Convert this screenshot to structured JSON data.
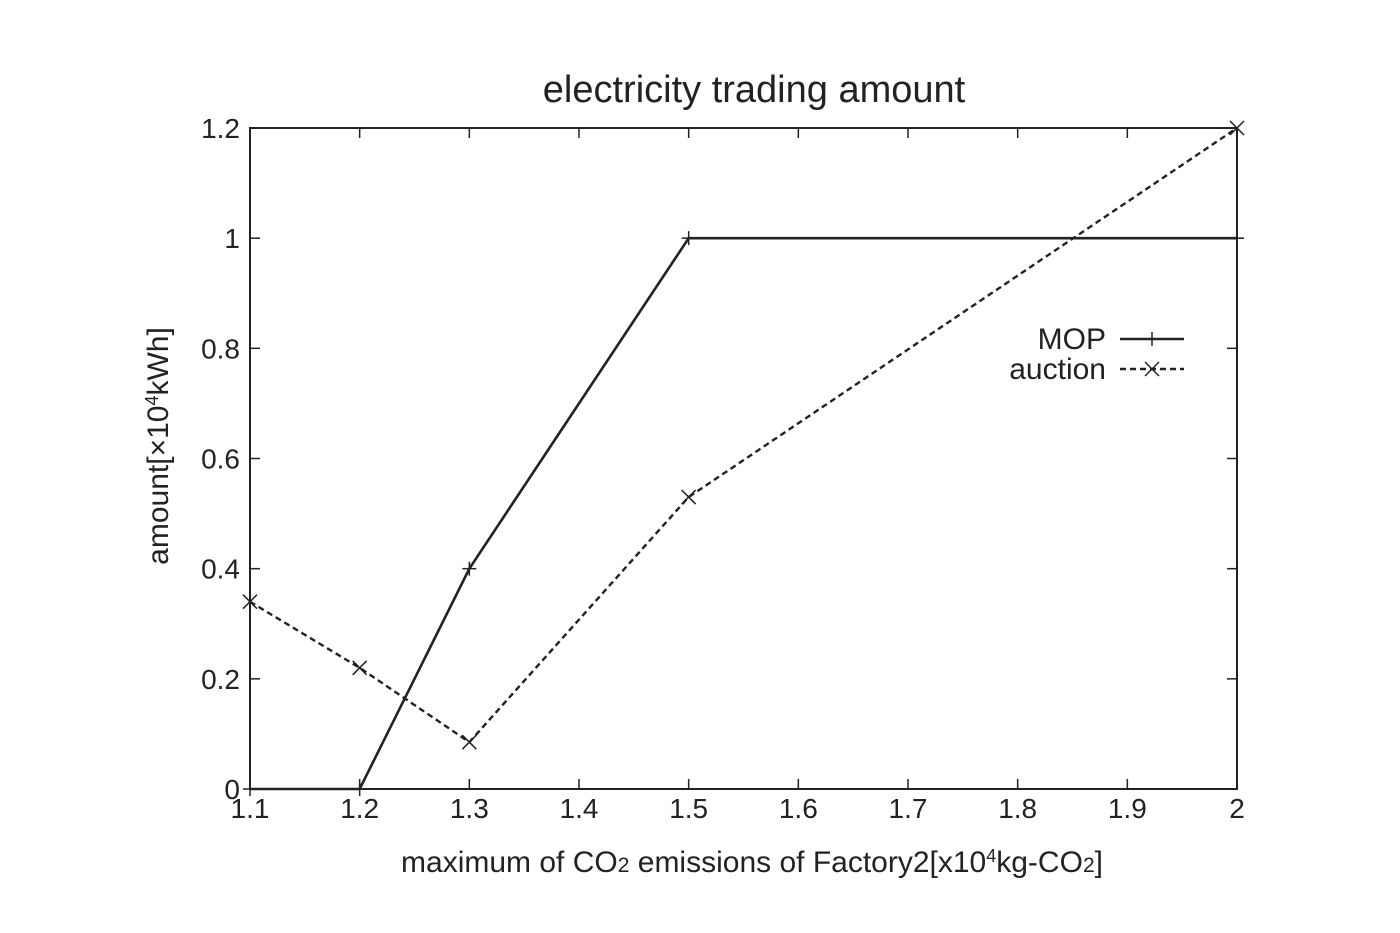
{
  "chart_data": {
    "type": "line",
    "title": "electricity trading amount",
    "xlabel": "maximum of CO₂ emissions of Factory2[x10⁴kg-CO₂]",
    "ylabel": "amount[×10⁴kWh]",
    "xlim": [
      1.1,
      2.0
    ],
    "ylim": [
      0,
      1.2
    ],
    "xticks": [
      "1.1",
      "1.2",
      "1.3",
      "1.4",
      "1.5",
      "1.6",
      "1.7",
      "1.8",
      "1.9",
      "2"
    ],
    "yticks": [
      "0",
      "0.2",
      "0.4",
      "0.6",
      "0.8",
      "1",
      "1.2"
    ],
    "grid": false,
    "legend": "upper-right, inside plot area",
    "series": [
      {
        "name": "MOP",
        "style": "solid",
        "marker": "plus",
        "color": "#222222",
        "x": [
          1.1,
          1.2,
          1.3,
          1.5,
          2.0
        ],
        "y": [
          0.0,
          0.0,
          0.4,
          1.0,
          1.0
        ]
      },
      {
        "name": "auction",
        "style": "dashed",
        "marker": "cross",
        "color": "#222222",
        "x": [
          1.1,
          1.2,
          1.3,
          1.5,
          2.0
        ],
        "y": [
          0.34,
          0.22,
          0.085,
          0.53,
          1.2
        ]
      }
    ]
  }
}
